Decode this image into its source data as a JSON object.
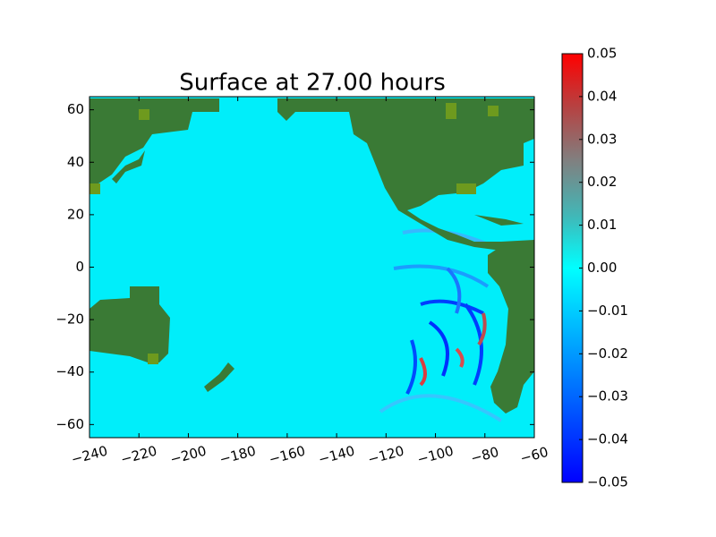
{
  "chart_data": {
    "type": "map",
    "title": "Surface at 27.00 hours",
    "xlim": [
      -240,
      -60
    ],
    "ylim": [
      -65,
      65
    ],
    "xticks": [
      {
        "value": -240,
        "label": "−240"
      },
      {
        "value": -220,
        "label": "−220"
      },
      {
        "value": -200,
        "label": "−200"
      },
      {
        "value": -180,
        "label": "−180"
      },
      {
        "value": -160,
        "label": "−160"
      },
      {
        "value": -140,
        "label": "−140"
      },
      {
        "value": -120,
        "label": "−120"
      },
      {
        "value": -100,
        "label": "−100"
      },
      {
        "value": -80,
        "label": "−80"
      },
      {
        "value": -60,
        "label": "−60"
      }
    ],
    "yticks": [
      {
        "value": -60,
        "label": "−60"
      },
      {
        "value": -40,
        "label": "−40"
      },
      {
        "value": -20,
        "label": "−20"
      },
      0,
      20,
      40,
      60
    ],
    "clim": [
      -0.05,
      0.05
    ],
    "cticks": [
      {
        "value": -0.05,
        "label": "−0.05"
      },
      {
        "value": -0.04,
        "label": "−0.04"
      },
      {
        "value": -0.03,
        "label": "−0.03"
      },
      {
        "value": -0.02,
        "label": "−0.02"
      },
      {
        "value": -0.01,
        "label": "−0.01"
      },
      {
        "value": 0,
        "label": "0.00"
      },
      0.01,
      0.02,
      0.03,
      0.04,
      0.05
    ]
  }
}
